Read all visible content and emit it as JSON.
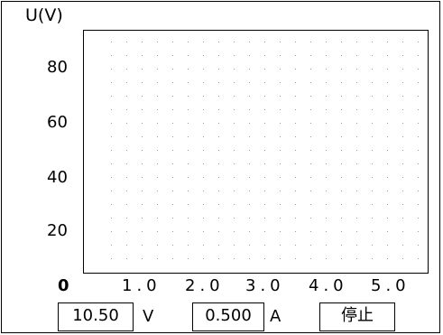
{
  "chart_data": {
    "type": "line",
    "ylabel": "U(V)",
    "xlabel": "",
    "y_ticks": [
      "80",
      "60",
      "40",
      "20",
      "0"
    ],
    "x_ticks": [
      "1.0",
      "2.0",
      "3.0",
      "4.0",
      "5.0"
    ],
    "ylim": [
      0,
      90
    ],
    "xlim": [
      0,
      5.5
    ],
    "grid": "dotted",
    "series": []
  },
  "readouts": {
    "voltage_value": "10.50",
    "voltage_unit": "V",
    "current_value": "0.500",
    "current_unit": "A",
    "stop_label": "停止"
  }
}
